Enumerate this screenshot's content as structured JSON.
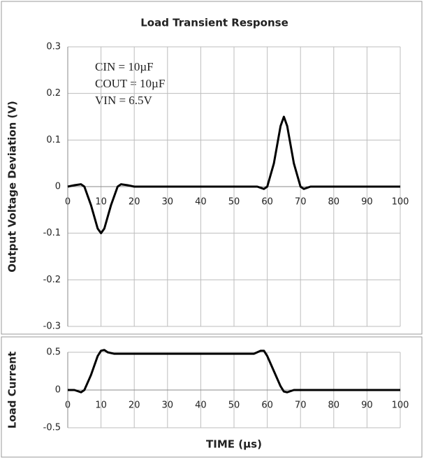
{
  "chart_data": [
    {
      "type": "line",
      "title": "Load Transient Response",
      "y_label": "Output Voltage Deviation (V)",
      "annotations": [
        "CIN = 10µF",
        "COUT = 10µF",
        "VIN = 6.5V"
      ],
      "x": [
        0,
        2,
        4,
        5,
        7,
        9,
        10,
        11,
        13,
        15,
        16,
        18,
        20,
        57,
        59,
        60,
        62,
        64,
        65,
        66,
        68,
        70,
        71,
        73,
        100
      ],
      "series": [
        {
          "name": "Output Voltage Deviation",
          "color": "#000000",
          "values": [
            0,
            0.003,
            0.005,
            0,
            -0.04,
            -0.09,
            -0.1,
            -0.09,
            -0.04,
            0,
            0.005,
            0.003,
            0,
            0,
            -0.005,
            0,
            0.05,
            0.13,
            0.15,
            0.13,
            0.05,
            0,
            -0.005,
            0,
            0
          ]
        }
      ],
      "xlim": [
        0,
        100
      ],
      "xticks": [
        0,
        10,
        20,
        30,
        40,
        50,
        60,
        70,
        80,
        90,
        100
      ],
      "ylim": [
        -0.3,
        0.3
      ],
      "yticks": [
        -0.3,
        -0.2,
        -0.1,
        0,
        0.1,
        0.2,
        0.3
      ],
      "grid": true
    },
    {
      "type": "line",
      "y_label": "Load Current",
      "x_label": "TIME  (µs)",
      "x": [
        0,
        2,
        4,
        5,
        7,
        9,
        10,
        11,
        12,
        14,
        56,
        58,
        59,
        60,
        62,
        64,
        65,
        66,
        68,
        100
      ],
      "series": [
        {
          "name": "Load Current",
          "color": "#000000",
          "values": [
            0,
            0,
            -0.03,
            0,
            0.2,
            0.45,
            0.52,
            0.53,
            0.5,
            0.48,
            0.48,
            0.52,
            0.52,
            0.45,
            0.25,
            0.05,
            -0.02,
            -0.03,
            0,
            0
          ]
        }
      ],
      "xlim": [
        0,
        100
      ],
      "xticks": [
        0,
        10,
        20,
        30,
        40,
        50,
        60,
        70,
        80,
        90,
        100
      ],
      "ylim": [
        -0.5,
        0.5
      ],
      "yticks": [
        -0.5,
        0,
        0.5
      ],
      "grid": true
    }
  ]
}
